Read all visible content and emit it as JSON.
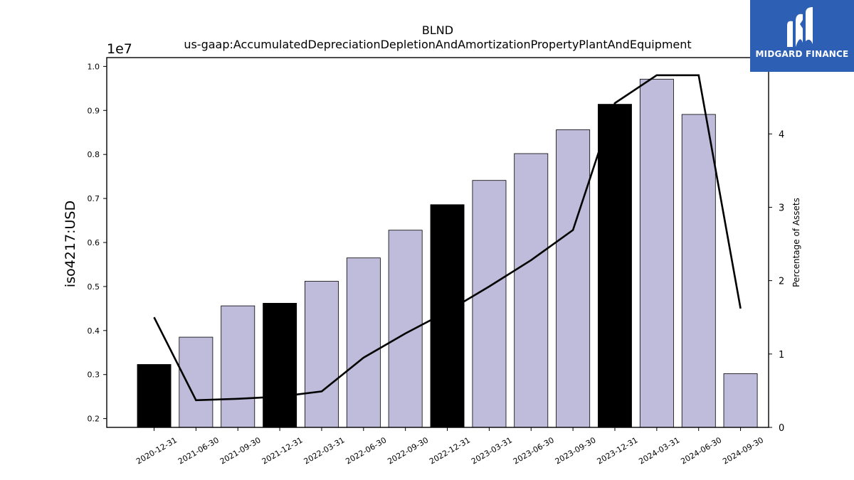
{
  "brand": {
    "name": "MIDGARD FINANCE",
    "bg_color": "#2d5fb4"
  },
  "chart_data": {
    "type": "bar",
    "title": "BLND",
    "subtitle": "us-gaap:AccumulatedDepreciationDepletionAndAmortizationPropertyPlantAndEquipment",
    "ylabel": "iso4217:USD",
    "y2label": "Percentage of Assets",
    "y_scale_label": "1e7",
    "ylim": [
      0.18,
      1.02
    ],
    "y2lim": [
      0,
      5.04
    ],
    "y_ticks": [
      "0.2",
      "0.3",
      "0.4",
      "0.5",
      "0.6",
      "0.7",
      "0.8",
      "0.9",
      "1.0"
    ],
    "y2_ticks": [
      "0",
      "1",
      "2",
      "3",
      "4"
    ],
    "categories": [
      "2020-12-31",
      "2021-06-30",
      "2021-09-30",
      "2021-12-31",
      "2022-03-31",
      "2022-06-30",
      "2022-09-30",
      "2022-12-31",
      "2023-03-31",
      "2023-06-30",
      "2023-09-30",
      "2023-12-31",
      "2024-03-31",
      "2024-06-30",
      "2024-09-30"
    ],
    "series": [
      {
        "type": "bar",
        "axis": "left",
        "values": [
          0.323,
          0.385,
          0.456,
          0.462,
          0.512,
          0.565,
          0.628,
          0.686,
          0.741,
          0.802,
          0.856,
          0.914,
          0.971,
          0.891,
          0.302
        ],
        "highlight": [
          true,
          false,
          false,
          true,
          false,
          false,
          false,
          true,
          false,
          false,
          false,
          true,
          false,
          false,
          false
        ],
        "color": "#bebbdb",
        "highlight_color": "#000000"
      },
      {
        "type": "line",
        "axis": "right",
        "values": [
          1.5,
          0.37,
          0.39,
          0.42,
          0.49,
          0.95,
          1.28,
          1.58,
          1.92,
          2.28,
          2.69,
          4.42,
          4.8,
          4.8,
          1.62
        ],
        "color": "#000000"
      }
    ],
    "grid": false,
    "legend": "none"
  }
}
